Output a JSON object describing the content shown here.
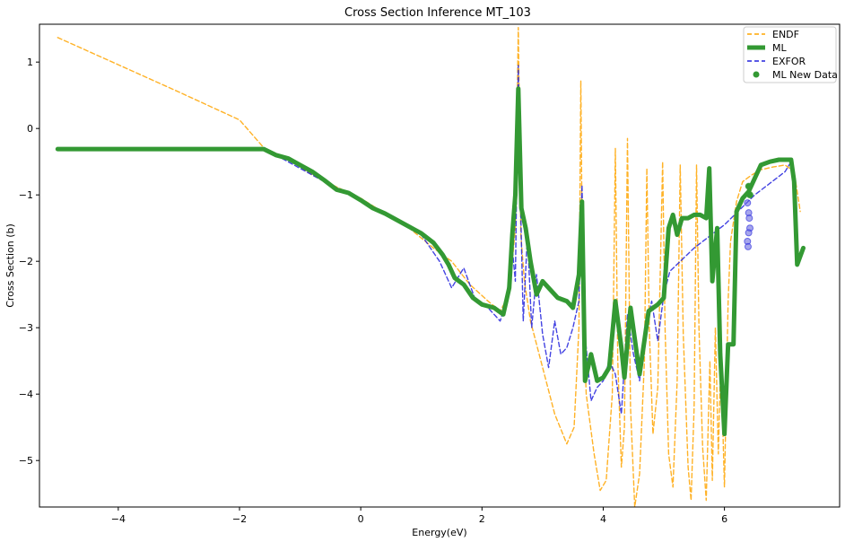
{
  "chart_data": {
    "type": "line",
    "title": "Cross Section Inference MT_103",
    "xlabel": "Energy(eV)",
    "ylabel": "Cross Section (b)",
    "xlim": [
      -5.3,
      7.9
    ],
    "ylim": [
      -5.7,
      1.57
    ],
    "x_ticks": [
      -4,
      -2,
      0,
      2,
      4,
      6
    ],
    "y_ticks": [
      1,
      0,
      -1,
      -2,
      -3,
      -4,
      -5
    ],
    "x_tick_labels": [
      "−4",
      "−2",
      "0",
      "2",
      "4",
      "6"
    ],
    "y_tick_labels": [
      "1",
      "0",
      "−1",
      "−2",
      "−3",
      "−4",
      "−5"
    ],
    "legend_position": "top-right",
    "grid": false,
    "series": [
      {
        "name": "ENDF",
        "style": "dashed",
        "color": "#ffa500",
        "points": [
          [
            -5.0,
            1.37
          ],
          [
            -4.0,
            0.96
          ],
          [
            -3.0,
            0.55
          ],
          [
            -2.0,
            0.13
          ],
          [
            -1.6,
            -0.29
          ],
          [
            -1.2,
            -0.46
          ],
          [
            -0.8,
            -0.7
          ],
          [
            -0.4,
            -0.88
          ],
          [
            0.0,
            -1.05
          ],
          [
            0.4,
            -1.28
          ],
          [
            0.8,
            -1.5
          ],
          [
            1.2,
            -1.8
          ],
          [
            1.5,
            -2.0
          ],
          [
            1.8,
            -2.35
          ],
          [
            2.1,
            -2.6
          ],
          [
            2.3,
            -2.75
          ],
          [
            2.45,
            -2.5
          ],
          [
            2.55,
            -1.5
          ],
          [
            2.6,
            1.52
          ],
          [
            2.64,
            -1.6
          ],
          [
            2.7,
            -2.3
          ],
          [
            2.8,
            -2.9
          ],
          [
            3.0,
            -3.6
          ],
          [
            3.2,
            -4.3
          ],
          [
            3.4,
            -4.75
          ],
          [
            3.52,
            -4.5
          ],
          [
            3.6,
            -3.0
          ],
          [
            3.63,
            0.72
          ],
          [
            3.66,
            -2.5
          ],
          [
            3.72,
            -4.0
          ],
          [
            3.85,
            -4.9
          ],
          [
            3.95,
            -5.45
          ],
          [
            4.05,
            -5.3
          ],
          [
            4.15,
            -4.0
          ],
          [
            4.2,
            -0.3
          ],
          [
            4.24,
            -3.5
          ],
          [
            4.3,
            -5.1
          ],
          [
            4.35,
            -4.5
          ],
          [
            4.4,
            -0.15
          ],
          [
            4.45,
            -4.2
          ],
          [
            4.52,
            -5.7
          ],
          [
            4.6,
            -5.2
          ],
          [
            4.68,
            -3.5
          ],
          [
            4.72,
            -0.6
          ],
          [
            4.76,
            -3.0
          ],
          [
            4.82,
            -4.6
          ],
          [
            4.9,
            -3.9
          ],
          [
            4.98,
            -0.5
          ],
          [
            5.02,
            -3.0
          ],
          [
            5.08,
            -4.9
          ],
          [
            5.15,
            -5.4
          ],
          [
            5.22,
            -3.8
          ],
          [
            5.27,
            -0.55
          ],
          [
            5.32,
            -3.1
          ],
          [
            5.4,
            -5.1
          ],
          [
            5.45,
            -5.6
          ],
          [
            5.5,
            -4.2
          ],
          [
            5.54,
            -0.55
          ],
          [
            5.58,
            -3.0
          ],
          [
            5.64,
            -4.8
          ],
          [
            5.7,
            -5.6
          ],
          [
            5.76,
            -3.5
          ],
          [
            5.8,
            -5.3
          ],
          [
            5.85,
            -3.0
          ],
          [
            5.9,
            -4.9
          ],
          [
            5.94,
            -3.4
          ],
          [
            6.0,
            -5.4
          ],
          [
            6.06,
            -2.6
          ],
          [
            6.1,
            -1.7
          ],
          [
            6.2,
            -1.1
          ],
          [
            6.3,
            -0.8
          ],
          [
            6.45,
            -0.7
          ],
          [
            6.6,
            -0.62
          ],
          [
            6.8,
            -0.58
          ],
          [
            7.0,
            -0.55
          ],
          [
            7.15,
            -0.65
          ],
          [
            7.25,
            -1.25
          ]
        ]
      },
      {
        "name": "ML",
        "style": "solid",
        "color": "#339933",
        "points": [
          [
            -5.0,
            -0.31
          ],
          [
            -1.6,
            -0.31
          ],
          [
            -1.4,
            -0.4
          ],
          [
            -1.2,
            -0.45
          ],
          [
            -1.0,
            -0.55
          ],
          [
            -0.8,
            -0.65
          ],
          [
            -0.6,
            -0.78
          ],
          [
            -0.4,
            -0.92
          ],
          [
            -0.2,
            -0.97
          ],
          [
            0.0,
            -1.08
          ],
          [
            0.2,
            -1.2
          ],
          [
            0.4,
            -1.28
          ],
          [
            0.6,
            -1.38
          ],
          [
            0.8,
            -1.48
          ],
          [
            1.0,
            -1.58
          ],
          [
            1.2,
            -1.72
          ],
          [
            1.35,
            -1.9
          ],
          [
            1.45,
            -2.05
          ],
          [
            1.55,
            -2.25
          ],
          [
            1.7,
            -2.35
          ],
          [
            1.85,
            -2.55
          ],
          [
            2.0,
            -2.65
          ],
          [
            2.2,
            -2.7
          ],
          [
            2.35,
            -2.8
          ],
          [
            2.45,
            -2.4
          ],
          [
            2.5,
            -1.6
          ],
          [
            2.55,
            -1.0
          ],
          [
            2.6,
            0.6
          ],
          [
            2.65,
            -1.2
          ],
          [
            2.72,
            -1.5
          ],
          [
            2.8,
            -2.0
          ],
          [
            2.9,
            -2.5
          ],
          [
            3.0,
            -2.3
          ],
          [
            3.1,
            -2.4
          ],
          [
            3.25,
            -2.55
          ],
          [
            3.4,
            -2.6
          ],
          [
            3.5,
            -2.7
          ],
          [
            3.6,
            -2.2
          ],
          [
            3.65,
            -1.1
          ],
          [
            3.7,
            -3.8
          ],
          [
            3.8,
            -3.4
          ],
          [
            3.9,
            -3.8
          ],
          [
            4.0,
            -3.75
          ],
          [
            4.1,
            -3.6
          ],
          [
            4.2,
            -2.6
          ],
          [
            4.3,
            -3.3
          ],
          [
            4.35,
            -3.75
          ],
          [
            4.45,
            -2.7
          ],
          [
            4.6,
            -3.7
          ],
          [
            4.75,
            -2.75
          ],
          [
            4.9,
            -2.65
          ],
          [
            5.0,
            -2.55
          ],
          [
            5.08,
            -1.5
          ],
          [
            5.15,
            -1.3
          ],
          [
            5.22,
            -1.6
          ],
          [
            5.3,
            -1.35
          ],
          [
            5.4,
            -1.35
          ],
          [
            5.5,
            -1.3
          ],
          [
            5.6,
            -1.3
          ],
          [
            5.7,
            -1.35
          ],
          [
            5.75,
            -0.6
          ],
          [
            5.8,
            -2.3
          ],
          [
            5.88,
            -1.5
          ],
          [
            5.93,
            -3.4
          ],
          [
            6.0,
            -4.6
          ],
          [
            6.06,
            -3.25
          ],
          [
            6.15,
            -3.25
          ],
          [
            6.2,
            -1.25
          ],
          [
            6.3,
            -1.05
          ],
          [
            6.4,
            -0.95
          ],
          [
            6.5,
            -0.75
          ],
          [
            6.6,
            -0.55
          ],
          [
            6.75,
            -0.5
          ],
          [
            6.9,
            -0.47
          ],
          [
            7.1,
            -0.47
          ],
          [
            7.15,
            -0.8
          ],
          [
            7.2,
            -2.05
          ],
          [
            7.3,
            -1.8
          ]
        ]
      },
      {
        "name": "EXFOR",
        "style": "dashed",
        "color": "#2222dd",
        "points": [
          [
            -1.4,
            -0.4
          ],
          [
            -1.0,
            -0.6
          ],
          [
            -0.6,
            -0.8
          ],
          [
            -0.2,
            -0.98
          ],
          [
            0.2,
            -1.2
          ],
          [
            0.6,
            -1.4
          ],
          [
            1.0,
            -1.6
          ],
          [
            1.3,
            -2.0
          ],
          [
            1.5,
            -2.4
          ],
          [
            1.7,
            -2.1
          ],
          [
            1.9,
            -2.6
          ],
          [
            2.1,
            -2.7
          ],
          [
            2.3,
            -2.9
          ],
          [
            2.4,
            -2.6
          ],
          [
            2.5,
            -1.8
          ],
          [
            2.55,
            -2.3
          ],
          [
            2.6,
            0.95
          ],
          [
            2.63,
            -0.9
          ],
          [
            2.68,
            -2.9
          ],
          [
            2.75,
            -1.6
          ],
          [
            2.82,
            -3.0
          ],
          [
            2.9,
            -2.2
          ],
          [
            3.0,
            -3.1
          ],
          [
            3.1,
            -3.6
          ],
          [
            3.2,
            -2.9
          ],
          [
            3.3,
            -3.4
          ],
          [
            3.4,
            -3.3
          ],
          [
            3.5,
            -3.0
          ],
          [
            3.6,
            -2.6
          ],
          [
            3.65,
            -0.85
          ],
          [
            3.7,
            -3.1
          ],
          [
            3.8,
            -4.1
          ],
          [
            3.9,
            -3.9
          ],
          [
            4.0,
            -3.8
          ],
          [
            4.1,
            -3.5
          ],
          [
            4.2,
            -3.7
          ],
          [
            4.3,
            -4.3
          ],
          [
            4.4,
            -2.8
          ],
          [
            4.5,
            -3.4
          ],
          [
            4.6,
            -3.8
          ],
          [
            4.7,
            -3.0
          ],
          [
            4.8,
            -2.6
          ],
          [
            4.9,
            -3.2
          ],
          [
            5.0,
            -2.5
          ],
          [
            5.1,
            -2.15
          ],
          [
            5.5,
            -1.8
          ],
          [
            6.0,
            -1.45
          ],
          [
            6.5,
            -1.0
          ],
          [
            7.0,
            -0.65
          ],
          [
            7.1,
            -0.5
          ],
          [
            7.15,
            -0.95
          ]
        ]
      },
      {
        "name": "ML New Data",
        "style": "scatter",
        "color": "#339933",
        "points": [
          [
            6.4,
            -0.87
          ],
          [
            6.42,
            -1.0
          ],
          [
            6.38,
            -1.12
          ],
          [
            6.4,
            -1.27
          ],
          [
            6.41,
            -1.35
          ],
          [
            6.42,
            -1.5
          ],
          [
            6.4,
            -1.57
          ],
          [
            6.38,
            -1.7
          ],
          [
            6.39,
            -1.78
          ]
        ]
      }
    ]
  }
}
